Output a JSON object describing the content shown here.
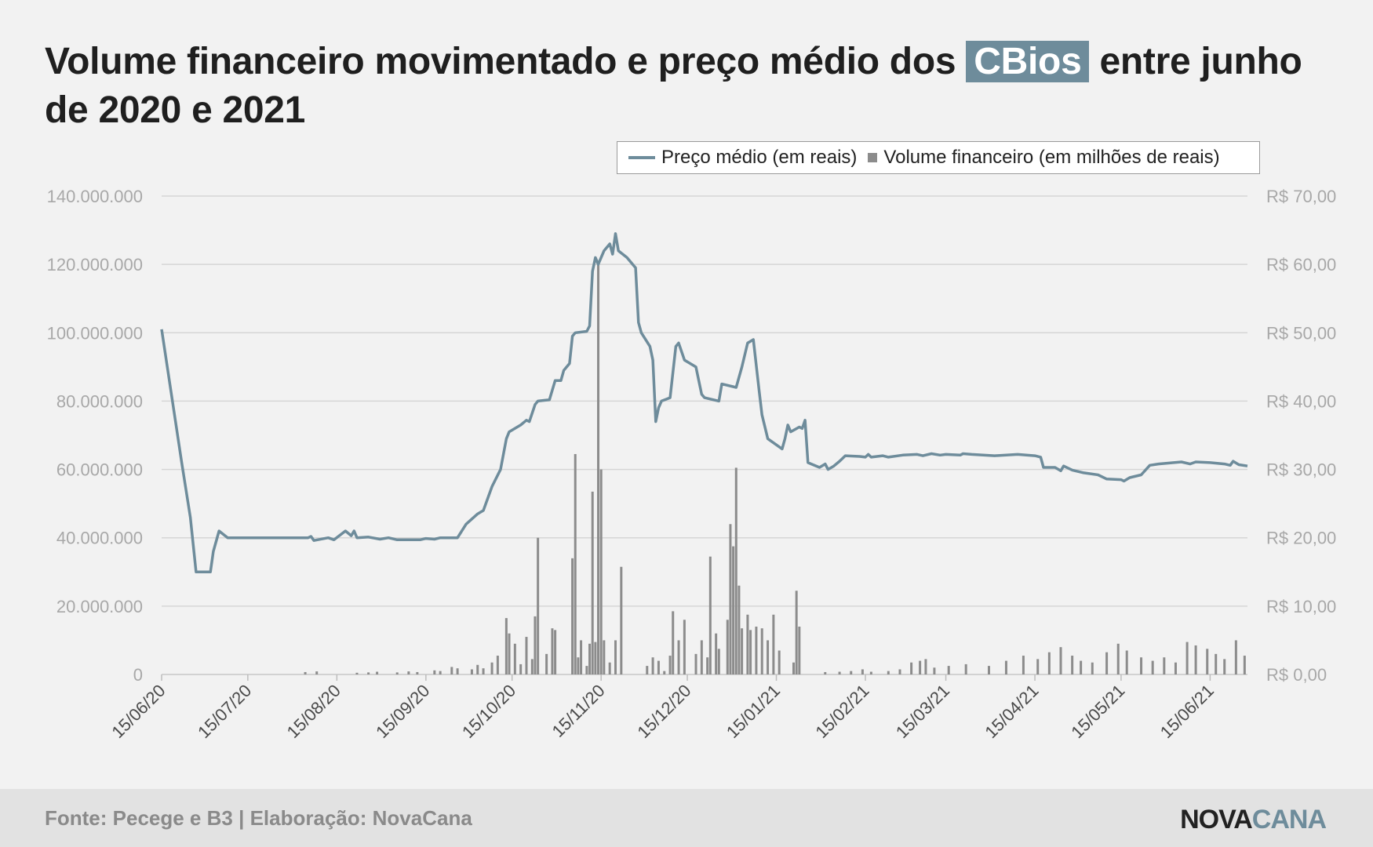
{
  "title": {
    "before": "Volume financeiro movimentado e preço médio dos ",
    "highlight": "CBios",
    "after": " entre junho de 2020 e 2021"
  },
  "legend": {
    "line_label": "Preço médio (em reais)",
    "bar_label": "Volume financeiro (em milhões de reais)"
  },
  "footer": {
    "source": "Fonte: Pecege e B3  | Elaboração: NovaCana",
    "logo_part1": "NOVA",
    "logo_part2": "CANA"
  },
  "colors": {
    "line": "#6e8c9b",
    "bars": "#8c8c8c",
    "grid": "#d6d6d6"
  },
  "chart_data": {
    "type": "bar+line",
    "xlim": [
      "2020-06-15",
      "2021-06-28"
    ],
    "x_ticks": [
      "15/06/20",
      "15/07/20",
      "15/08/20",
      "15/09/20",
      "15/10/20",
      "15/11/20",
      "15/12/20",
      "15/01/21",
      "15/02/21",
      "15/03/21",
      "15/04/21",
      "15/05/21",
      "15/06/21"
    ],
    "y_left": {
      "ylim": [
        0,
        140000000
      ],
      "ticks": [
        "0",
        "20.000.000",
        "40.000.000",
        "60.000.000",
        "80.000.000",
        "100.000.000",
        "120.000.000",
        "140.000.000"
      ]
    },
    "y_right": {
      "ylim": [
        0,
        70
      ],
      "ticks": [
        "R$ 0,00",
        "R$ 10,00",
        "R$ 20,00",
        "R$ 30,00",
        "R$ 40,00",
        "R$ 50,00",
        "R$ 60,00",
        "R$ 70,00"
      ]
    },
    "grid": true,
    "legend_position": "top-right",
    "series": [
      {
        "name": "Preço médio (em reais)",
        "type": "line",
        "axis": "right",
        "points": [
          [
            "2020-06-15",
            50.5
          ],
          [
            "2020-06-22",
            31
          ],
          [
            "2020-06-25",
            23
          ],
          [
            "2020-06-27",
            15
          ],
          [
            "2020-07-02",
            15
          ],
          [
            "2020-07-03",
            18
          ],
          [
            "2020-07-05",
            21
          ],
          [
            "2020-07-08",
            20
          ],
          [
            "2020-08-05",
            20
          ],
          [
            "2020-08-06",
            20.2
          ],
          [
            "2020-08-07",
            19.6
          ],
          [
            "2020-08-12",
            20
          ],
          [
            "2020-08-14",
            19.7
          ],
          [
            "2020-08-18",
            21
          ],
          [
            "2020-08-20",
            20.3
          ],
          [
            "2020-08-21",
            21
          ],
          [
            "2020-08-22",
            20
          ],
          [
            "2020-08-26",
            20.1
          ],
          [
            "2020-08-30",
            19.8
          ],
          [
            "2020-09-02",
            20
          ],
          [
            "2020-09-05",
            19.7
          ],
          [
            "2020-09-13",
            19.7
          ],
          [
            "2020-09-15",
            19.9
          ],
          [
            "2020-09-18",
            19.8
          ],
          [
            "2020-09-20",
            20
          ],
          [
            "2020-09-26",
            20
          ],
          [
            "2020-09-29",
            22
          ],
          [
            "2020-10-03",
            23.5
          ],
          [
            "2020-10-05",
            24
          ],
          [
            "2020-10-08",
            27.5
          ],
          [
            "2020-10-11",
            30
          ],
          [
            "2020-10-13",
            34.5
          ],
          [
            "2020-10-14",
            35.5
          ],
          [
            "2020-10-18",
            36.5
          ],
          [
            "2020-10-20",
            37.2
          ],
          [
            "2020-10-21",
            37
          ],
          [
            "2020-10-23",
            39.5
          ],
          [
            "2020-10-24",
            40
          ],
          [
            "2020-10-28",
            40.2
          ],
          [
            "2020-10-30",
            43
          ],
          [
            "2020-11-01",
            43
          ],
          [
            "2020-11-02",
            44.5
          ],
          [
            "2020-11-04",
            45.5
          ],
          [
            "2020-11-05",
            49.5
          ],
          [
            "2020-11-06",
            50
          ],
          [
            "2020-11-10",
            50.2
          ],
          [
            "2020-11-11",
            51
          ],
          [
            "2020-11-12",
            59
          ],
          [
            "2020-11-13",
            61
          ],
          [
            "2020-11-14",
            60
          ],
          [
            "2020-11-16",
            62
          ],
          [
            "2020-11-18",
            63
          ],
          [
            "2020-11-19",
            61.5
          ],
          [
            "2020-11-20",
            64.5
          ],
          [
            "2020-11-21",
            62
          ],
          [
            "2020-11-24",
            61
          ],
          [
            "2020-11-27",
            59.5
          ],
          [
            "2020-11-28",
            51.5
          ],
          [
            "2020-11-29",
            50
          ],
          [
            "2020-12-02",
            48
          ],
          [
            "2020-12-03",
            46
          ],
          [
            "2020-12-04",
            37
          ],
          [
            "2020-12-05",
            39
          ],
          [
            "2020-12-06",
            40
          ],
          [
            "2020-12-09",
            40.5
          ],
          [
            "2020-12-11",
            48
          ],
          [
            "2020-12-12",
            48.5
          ],
          [
            "2020-12-14",
            46
          ],
          [
            "2020-12-18",
            45
          ],
          [
            "2020-12-20",
            41
          ],
          [
            "2020-12-21",
            40.5
          ],
          [
            "2020-12-24",
            40.2
          ],
          [
            "2020-12-26",
            40
          ],
          [
            "2020-12-27",
            42.5
          ],
          [
            "2021-01-01",
            42
          ],
          [
            "2021-01-03",
            45
          ],
          [
            "2021-01-05",
            48.5
          ],
          [
            "2021-01-07",
            49
          ],
          [
            "2021-01-09",
            41.5
          ],
          [
            "2021-01-10",
            38
          ],
          [
            "2021-01-12",
            34.5
          ],
          [
            "2021-01-17",
            33
          ],
          [
            "2021-01-18",
            34.5
          ],
          [
            "2021-01-19",
            36.5
          ],
          [
            "2021-01-20",
            35.5
          ],
          [
            "2021-01-23",
            36.2
          ],
          [
            "2021-01-24",
            36
          ],
          [
            "2021-01-25",
            37.2
          ],
          [
            "2021-01-26",
            31
          ],
          [
            "2021-01-30",
            30.3
          ],
          [
            "2021-02-01",
            30.8
          ],
          [
            "2021-02-02",
            30
          ],
          [
            "2021-02-04",
            30.5
          ],
          [
            "2021-02-06",
            31.2
          ],
          [
            "2021-02-08",
            32
          ],
          [
            "2021-02-13",
            31.9
          ],
          [
            "2021-02-15",
            31.8
          ],
          [
            "2021-02-16",
            32.2
          ],
          [
            "2021-02-17",
            31.8
          ],
          [
            "2021-02-21",
            32
          ],
          [
            "2021-02-23",
            31.8
          ],
          [
            "2021-02-28",
            32.1
          ],
          [
            "2021-03-05",
            32.2
          ],
          [
            "2021-03-07",
            32
          ],
          [
            "2021-03-10",
            32.3
          ],
          [
            "2021-03-13",
            32.1
          ],
          [
            "2021-03-15",
            32.2
          ],
          [
            "2021-03-20",
            32.1
          ],
          [
            "2021-03-21",
            32.3
          ],
          [
            "2021-03-24",
            32.2
          ],
          [
            "2021-04-01",
            32
          ],
          [
            "2021-04-09",
            32.2
          ],
          [
            "2021-04-15",
            32
          ],
          [
            "2021-04-17",
            31.8
          ],
          [
            "2021-04-18",
            30.3
          ],
          [
            "2021-04-22",
            30.3
          ],
          [
            "2021-04-24",
            29.8
          ],
          [
            "2021-04-25",
            30.5
          ],
          [
            "2021-04-28",
            29.9
          ],
          [
            "2021-05-02",
            29.5
          ],
          [
            "2021-05-07",
            29.2
          ],
          [
            "2021-05-10",
            28.6
          ],
          [
            "2021-05-15",
            28.5
          ],
          [
            "2021-05-16",
            28.3
          ],
          [
            "2021-05-18",
            28.8
          ],
          [
            "2021-05-22",
            29.2
          ],
          [
            "2021-05-25",
            30.6
          ],
          [
            "2021-05-28",
            30.8
          ],
          [
            "2021-06-05",
            31.1
          ],
          [
            "2021-06-08",
            30.8
          ],
          [
            "2021-06-10",
            31.1
          ],
          [
            "2021-06-15",
            31
          ],
          [
            "2021-06-20",
            30.8
          ],
          [
            "2021-06-22",
            30.6
          ],
          [
            "2021-06-23",
            31.2
          ],
          [
            "2021-06-25",
            30.7
          ],
          [
            "2021-06-28",
            30.5
          ]
        ]
      },
      {
        "name": "Volume financeiro (em milhões de reais)",
        "type": "bar",
        "axis": "left",
        "points": [
          [
            "2020-08-04",
            700000
          ],
          [
            "2020-08-08",
            900000
          ],
          [
            "2020-08-22",
            500000
          ],
          [
            "2020-08-26",
            600000
          ],
          [
            "2020-08-29",
            800000
          ],
          [
            "2020-09-05",
            600000
          ],
          [
            "2020-09-09",
            900000
          ],
          [
            "2020-09-12",
            700000
          ],
          [
            "2020-09-18",
            1200000
          ],
          [
            "2020-09-20",
            1000000
          ],
          [
            "2020-09-24",
            2200000
          ],
          [
            "2020-09-26",
            1800000
          ],
          [
            "2020-10-01",
            1500000
          ],
          [
            "2020-10-03",
            2800000
          ],
          [
            "2020-10-05",
            1800000
          ],
          [
            "2020-10-08",
            3500000
          ],
          [
            "2020-10-10",
            5500000
          ],
          [
            "2020-10-13",
            16500000
          ],
          [
            "2020-10-14",
            12000000
          ],
          [
            "2020-10-16",
            9000000
          ],
          [
            "2020-10-18",
            3000000
          ],
          [
            "2020-10-20",
            11000000
          ],
          [
            "2020-10-22",
            4500000
          ],
          [
            "2020-10-23",
            17000000
          ],
          [
            "2020-10-24",
            40000000
          ],
          [
            "2020-10-27",
            6000000
          ],
          [
            "2020-10-29",
            13500000
          ],
          [
            "2020-10-30",
            13000000
          ],
          [
            "2020-11-05",
            34000000
          ],
          [
            "2020-11-06",
            64500000
          ],
          [
            "2020-11-07",
            5000000
          ],
          [
            "2020-11-08",
            10000000
          ],
          [
            "2020-11-10",
            2500000
          ],
          [
            "2020-11-11",
            9000000
          ],
          [
            "2020-11-12",
            53500000
          ],
          [
            "2020-11-13",
            9500000
          ],
          [
            "2020-11-14",
            120000000
          ],
          [
            "2020-11-15",
            60000000
          ],
          [
            "2020-11-16",
            10000000
          ],
          [
            "2020-11-18",
            3500000
          ],
          [
            "2020-11-20",
            10000000
          ],
          [
            "2020-11-22",
            31500000
          ],
          [
            "2020-12-01",
            2500000
          ],
          [
            "2020-12-03",
            5000000
          ],
          [
            "2020-12-05",
            4000000
          ],
          [
            "2020-12-07",
            1000000
          ],
          [
            "2020-12-09",
            5500000
          ],
          [
            "2020-12-10",
            18500000
          ],
          [
            "2020-12-12",
            10000000
          ],
          [
            "2020-12-14",
            16000000
          ],
          [
            "2020-12-18",
            6000000
          ],
          [
            "2020-12-20",
            10000000
          ],
          [
            "2020-12-22",
            5000000
          ],
          [
            "2020-12-23",
            34500000
          ],
          [
            "2020-12-25",
            12000000
          ],
          [
            "2020-12-26",
            7500000
          ],
          [
            "2020-12-29",
            16000000
          ],
          [
            "2020-12-30",
            44000000
          ],
          [
            "2020-12-31",
            37500000
          ],
          [
            "2021-01-01",
            60500000
          ],
          [
            "2021-01-02",
            26000000
          ],
          [
            "2021-01-03",
            13500000
          ],
          [
            "2021-01-05",
            17500000
          ],
          [
            "2021-01-06",
            13000000
          ],
          [
            "2021-01-08",
            14000000
          ],
          [
            "2021-01-10",
            13500000
          ],
          [
            "2021-01-12",
            10000000
          ],
          [
            "2021-01-14",
            17500000
          ],
          [
            "2021-01-16",
            7000000
          ],
          [
            "2021-01-21",
            3500000
          ],
          [
            "2021-01-22",
            24500000
          ],
          [
            "2021-01-23",
            14000000
          ],
          [
            "2021-02-01",
            700000
          ],
          [
            "2021-02-06",
            800000
          ],
          [
            "2021-02-10",
            1000000
          ],
          [
            "2021-02-14",
            1500000
          ],
          [
            "2021-02-17",
            800000
          ],
          [
            "2021-02-23",
            1000000
          ],
          [
            "2021-02-27",
            1500000
          ],
          [
            "2021-03-03",
            3500000
          ],
          [
            "2021-03-06",
            4000000
          ],
          [
            "2021-03-08",
            4500000
          ],
          [
            "2021-03-11",
            2000000
          ],
          [
            "2021-03-16",
            2500000
          ],
          [
            "2021-03-22",
            3000000
          ],
          [
            "2021-03-30",
            2500000
          ],
          [
            "2021-04-05",
            4000000
          ],
          [
            "2021-04-11",
            5500000
          ],
          [
            "2021-04-16",
            4500000
          ],
          [
            "2021-04-20",
            6500000
          ],
          [
            "2021-04-24",
            8000000
          ],
          [
            "2021-04-28",
            5500000
          ],
          [
            "2021-05-01",
            4000000
          ],
          [
            "2021-05-05",
            3500000
          ],
          [
            "2021-05-10",
            6500000
          ],
          [
            "2021-05-14",
            9000000
          ],
          [
            "2021-05-17",
            7000000
          ],
          [
            "2021-05-22",
            5000000
          ],
          [
            "2021-05-26",
            4000000
          ],
          [
            "2021-05-30",
            5000000
          ],
          [
            "2021-06-03",
            3500000
          ],
          [
            "2021-06-07",
            9500000
          ],
          [
            "2021-06-10",
            8500000
          ],
          [
            "2021-06-14",
            7500000
          ],
          [
            "2021-06-17",
            6000000
          ],
          [
            "2021-06-20",
            4500000
          ],
          [
            "2021-06-24",
            10000000
          ],
          [
            "2021-06-27",
            5500000
          ]
        ]
      }
    ]
  }
}
